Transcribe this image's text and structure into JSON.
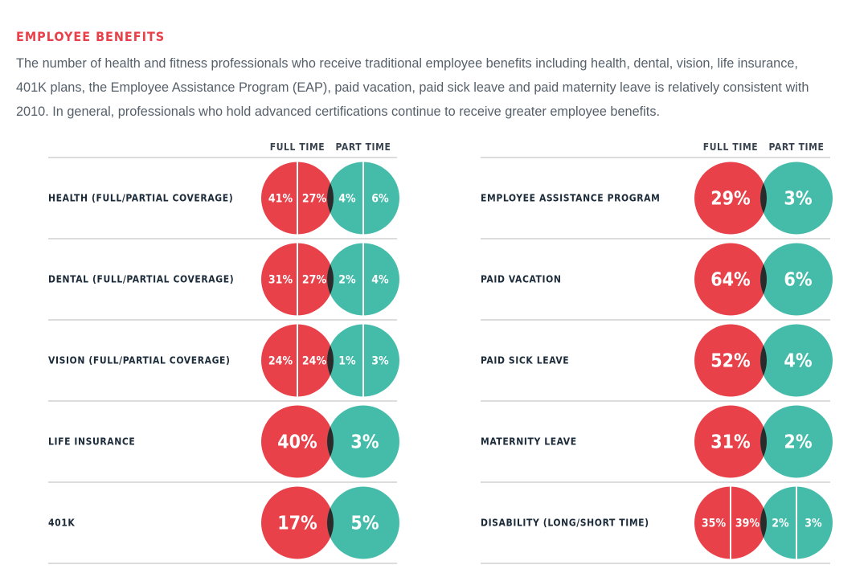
{
  "header": {
    "title": "EMPLOYEE BENEFITS",
    "intro_lines": [
      "The number of health and fitness professionals who receive traditional employee benefits including health, dental, vision, life insurance,",
      "401K plans, the Employee Assistance Program (EAP), paid vacation, paid sick leave and paid maternity leave is relatively consistent with",
      "2010. In general, professionals who hold advanced certifications continue to receive greater employee benefits."
    ]
  },
  "colors": {
    "full_time": "#e8414a",
    "part_time": "#45bcaa",
    "overlap": "#2b2b2b",
    "title": "#e8414a"
  },
  "chart_data": {
    "type": "table",
    "title": "EMPLOYEE BENEFITS",
    "columns": [
      "FULL TIME",
      "PART TIME"
    ],
    "unit": "%",
    "panels": [
      {
        "rows": [
          {
            "label": "HEALTH (FULL/PARTIAL COVERAGE)",
            "full_time": [
              41,
              27
            ],
            "part_time": [
              4,
              6
            ]
          },
          {
            "label": "DENTAL (FULL/PARTIAL COVERAGE)",
            "full_time": [
              31,
              27
            ],
            "part_time": [
              2,
              4
            ]
          },
          {
            "label": "VISION (FULL/PARTIAL COVERAGE)",
            "full_time": [
              24,
              24
            ],
            "part_time": [
              1,
              3
            ]
          },
          {
            "label": "LIFE INSURANCE",
            "full_time": [
              40
            ],
            "part_time": [
              3
            ]
          },
          {
            "label": "401K",
            "full_time": [
              17
            ],
            "part_time": [
              5
            ]
          }
        ]
      },
      {
        "rows": [
          {
            "label": "EMPLOYEE ASSISTANCE PROGRAM",
            "full_time": [
              29
            ],
            "part_time": [
              3
            ]
          },
          {
            "label": "PAID VACATION",
            "full_time": [
              64
            ],
            "part_time": [
              6
            ]
          },
          {
            "label": "PAID SICK LEAVE",
            "full_time": [
              52
            ],
            "part_time": [
              4
            ]
          },
          {
            "label": "MATERNITY LEAVE",
            "full_time": [
              31
            ],
            "part_time": [
              2
            ]
          },
          {
            "label": "DISABILITY (LONG/SHORT TIME)",
            "full_time": [
              35,
              39
            ],
            "part_time": [
              2,
              3
            ]
          }
        ]
      }
    ]
  }
}
